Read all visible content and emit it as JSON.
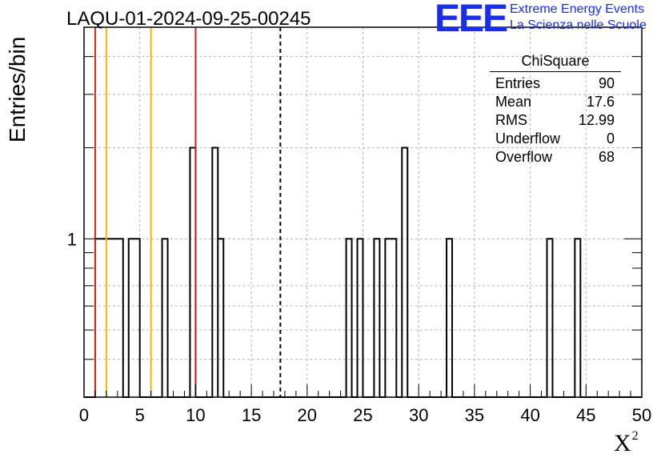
{
  "title": "LAQU-01-2024-09-25-00245",
  "logo": {
    "mark": "EEE",
    "line1": "Extreme Energy Events",
    "line2": "La Scienza nelle Scuole",
    "color": "#1a2ee6"
  },
  "stats": {
    "name": "ChiSquare",
    "rows": [
      {
        "label": "Entries",
        "value": "90"
      },
      {
        "label": "Mean",
        "value": "17.6"
      },
      {
        "label": "RMS",
        "value": "12.99"
      },
      {
        "label": "Underflow",
        "value": "0"
      },
      {
        "label": "Overflow",
        "value": "68"
      }
    ]
  },
  "chart_data": {
    "type": "histogram",
    "xlabel": "X",
    "xlabel_superscript": "2",
    "ylabel": "Entries/bin",
    "xlim": [
      0,
      50
    ],
    "ylim": [
      0.3,
      5
    ],
    "yscale": "log",
    "grid": true,
    "x_ticks": [
      "0",
      "5",
      "10",
      "15",
      "20",
      "25",
      "30",
      "35",
      "40",
      "45",
      "50"
    ],
    "y_tick_labels": [
      "1"
    ],
    "bins": [
      {
        "x0": 1.0,
        "x1": 3.5,
        "count": 1
      },
      {
        "x0": 4.0,
        "x1": 5.0,
        "count": 1
      },
      {
        "x0": 7.0,
        "x1": 7.5,
        "count": 1
      },
      {
        "x0": 9.5,
        "x1": 10.0,
        "count": 2
      },
      {
        "x0": 11.5,
        "x1": 12.0,
        "count": 2
      },
      {
        "x0": 12.0,
        "x1": 12.5,
        "count": 1
      },
      {
        "x0": 23.5,
        "x1": 24.0,
        "count": 1
      },
      {
        "x0": 24.5,
        "x1": 25.0,
        "count": 1
      },
      {
        "x0": 26.0,
        "x1": 26.5,
        "count": 1
      },
      {
        "x0": 27.0,
        "x1": 28.0,
        "count": 1
      },
      {
        "x0": 28.5,
        "x1": 29.0,
        "count": 2
      },
      {
        "x0": 32.5,
        "x1": 33.0,
        "count": 1
      },
      {
        "x0": 41.5,
        "x1": 42.0,
        "count": 1
      },
      {
        "x0": 44.0,
        "x1": 44.5,
        "count": 1
      }
    ],
    "vertical_lines": [
      {
        "x": 1.0,
        "color": "#e02020",
        "style": "solid"
      },
      {
        "x": 2.0,
        "color": "#f0b800",
        "style": "solid"
      },
      {
        "x": 6.0,
        "color": "#f0b800",
        "style": "solid"
      },
      {
        "x": 10.0,
        "color": "#e02020",
        "style": "solid"
      },
      {
        "x": 17.6,
        "color": "#000000",
        "style": "dashed"
      }
    ]
  }
}
